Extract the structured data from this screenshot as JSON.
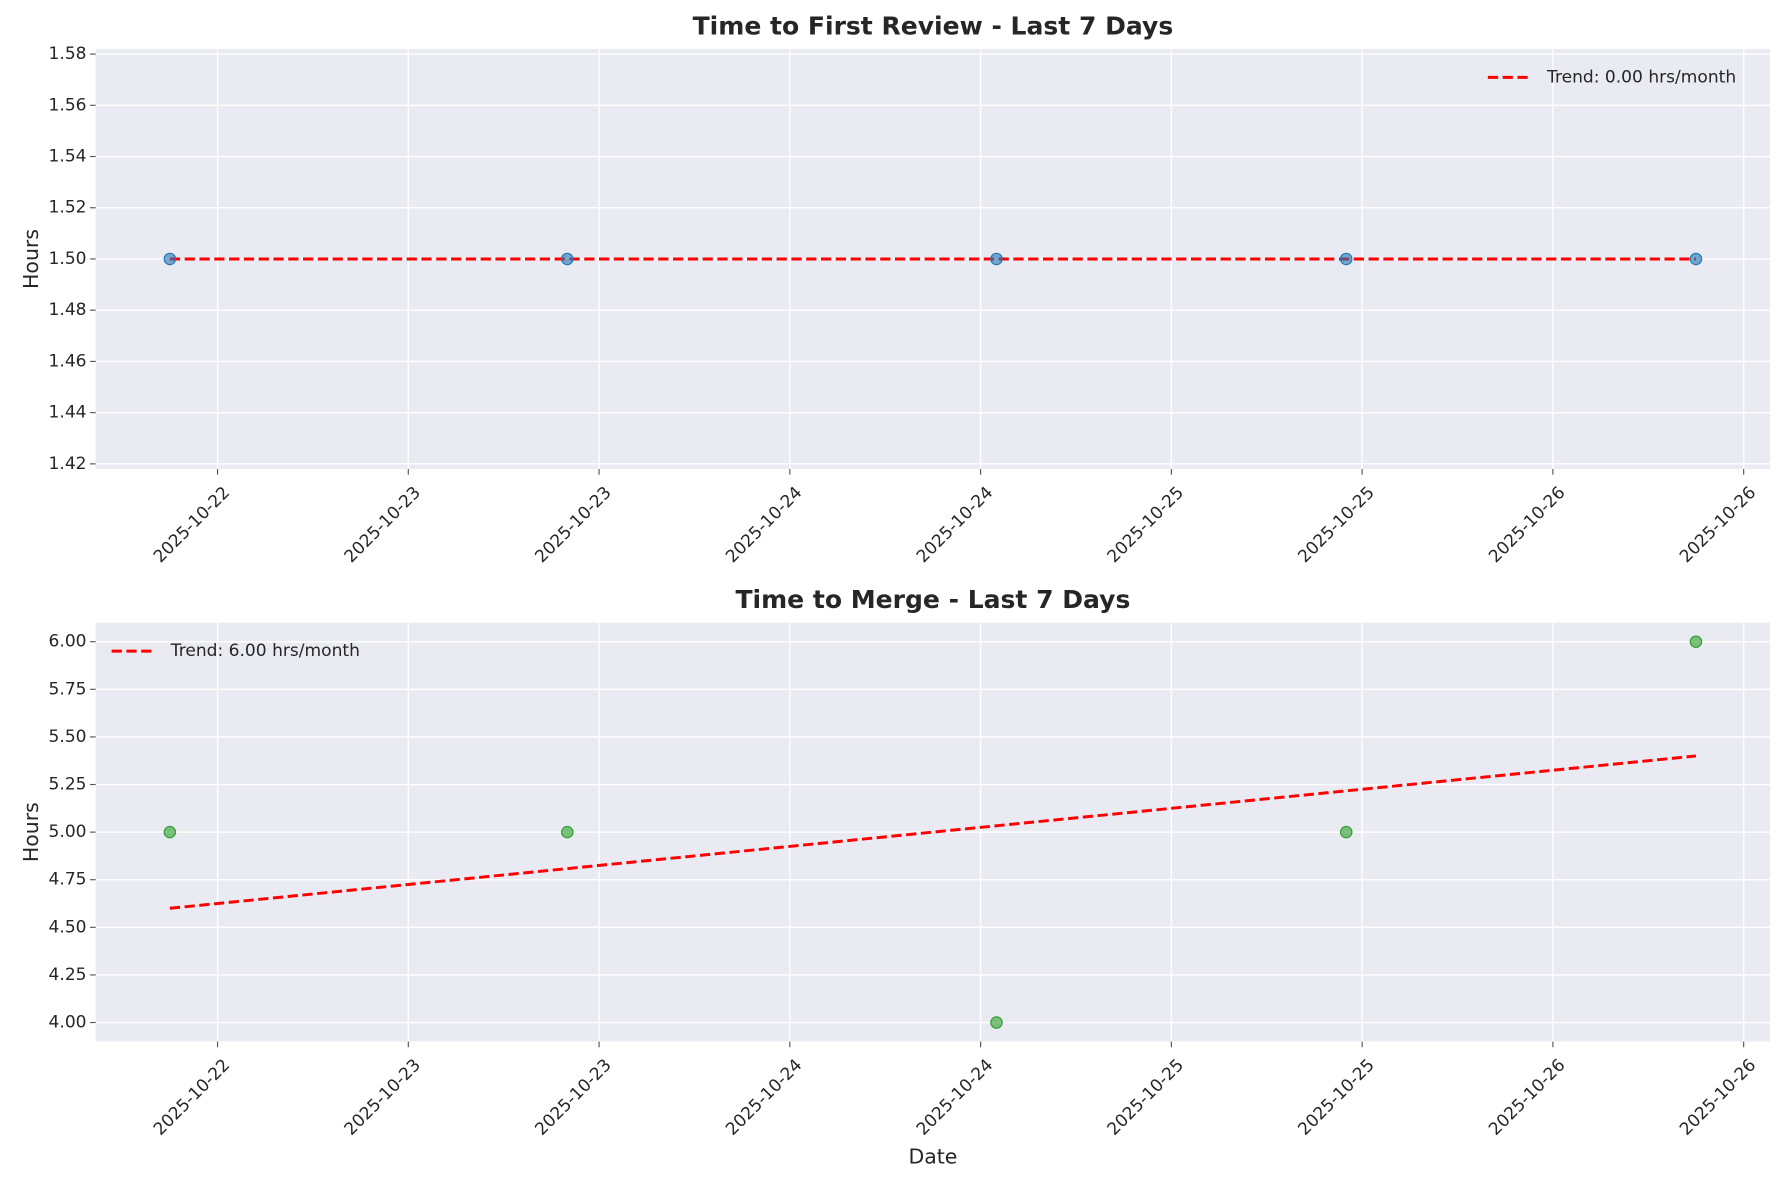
{
  "chart_data": [
    {
      "type": "scatter",
      "title": "Time to First Review - Last 7 Days",
      "ylabel": "Hours",
      "x": [
        "2025-10-22T09:00",
        "2025-10-23T10:00",
        "2025-10-24T13:00",
        "2025-10-25T11:00",
        "2025-10-26T09:00"
      ],
      "values": [
        1.5,
        1.5,
        1.5,
        1.5,
        1.5
      ],
      "color": "#1f77b4",
      "trend": {
        "name": "Trend: 0.00 hrs/month",
        "color": "#ff0000",
        "x": [
          "2025-10-22T09:00",
          "2025-10-26T09:00"
        ],
        "values": [
          1.5,
          1.5
        ]
      },
      "xlim": [
        "2025-10-22T04:20",
        "2025-10-26T13:40"
      ],
      "xticks": [
        {
          "value": "2025-10-22T12:00",
          "label": "2025-10-22"
        },
        {
          "value": "2025-10-23T00:00",
          "label": "2025-10-23"
        },
        {
          "value": "2025-10-23T12:00",
          "label": "2025-10-23"
        },
        {
          "value": "2025-10-24T00:00",
          "label": "2025-10-24"
        },
        {
          "value": "2025-10-24T12:00",
          "label": "2025-10-24"
        },
        {
          "value": "2025-10-25T00:00",
          "label": "2025-10-25"
        },
        {
          "value": "2025-10-25T12:00",
          "label": "2025-10-25"
        },
        {
          "value": "2025-10-26T00:00",
          "label": "2025-10-26"
        },
        {
          "value": "2025-10-26T12:00",
          "label": "2025-10-26"
        }
      ],
      "ylim": [
        1.418,
        1.582
      ],
      "yticks": [
        {
          "value": 1.42,
          "label": "1.42"
        },
        {
          "value": 1.44,
          "label": "1.44"
        },
        {
          "value": 1.46,
          "label": "1.46"
        },
        {
          "value": 1.48,
          "label": "1.48"
        },
        {
          "value": 1.5,
          "label": "1.50"
        },
        {
          "value": 1.52,
          "label": "1.52"
        },
        {
          "value": 1.54,
          "label": "1.54"
        },
        {
          "value": 1.56,
          "label": "1.56"
        },
        {
          "value": 1.58,
          "label": "1.58"
        }
      ],
      "grid": true,
      "legend": "upper right"
    },
    {
      "type": "scatter",
      "title": "Time to Merge - Last 7 Days",
      "ylabel": "Hours",
      "xlabel": "Date",
      "x": [
        "2025-10-22T09:00",
        "2025-10-23T10:00",
        "2025-10-24T13:00",
        "2025-10-25T11:00",
        "2025-10-26T09:00"
      ],
      "values": [
        5,
        5,
        4,
        5,
        6
      ],
      "color": "#2ca02c",
      "trend": {
        "name": "Trend: 6.00 hrs/month",
        "color": "#ff0000",
        "x": [
          "2025-10-22T09:00",
          "2025-10-26T09:00"
        ],
        "values": [
          4.6,
          5.4
        ]
      },
      "xlim": [
        "2025-10-22T04:20",
        "2025-10-26T13:40"
      ],
      "xticks": [
        {
          "value": "2025-10-22T12:00",
          "label": "2025-10-22"
        },
        {
          "value": "2025-10-23T00:00",
          "label": "2025-10-23"
        },
        {
          "value": "2025-10-23T12:00",
          "label": "2025-10-23"
        },
        {
          "value": "2025-10-24T00:00",
          "label": "2025-10-24"
        },
        {
          "value": "2025-10-24T12:00",
          "label": "2025-10-24"
        },
        {
          "value": "2025-10-25T00:00",
          "label": "2025-10-25"
        },
        {
          "value": "2025-10-25T12:00",
          "label": "2025-10-25"
        },
        {
          "value": "2025-10-26T00:00",
          "label": "2025-10-26"
        },
        {
          "value": "2025-10-26T12:00",
          "label": "2025-10-26"
        }
      ],
      "ylim": [
        3.9,
        6.1
      ],
      "yticks": [
        {
          "value": 4,
          "label": "4.00"
        },
        {
          "value": 4.25,
          "label": "4.25"
        },
        {
          "value": 4.5,
          "label": "4.50"
        },
        {
          "value": 4.75,
          "label": "4.75"
        },
        {
          "value": 5,
          "label": "5.00"
        },
        {
          "value": 5.25,
          "label": "5.25"
        },
        {
          "value": 5.5,
          "label": "5.50"
        },
        {
          "value": 5.75,
          "label": "5.75"
        },
        {
          "value": 6,
          "label": "6.00"
        }
      ],
      "grid": true,
      "legend": "upper left"
    }
  ]
}
